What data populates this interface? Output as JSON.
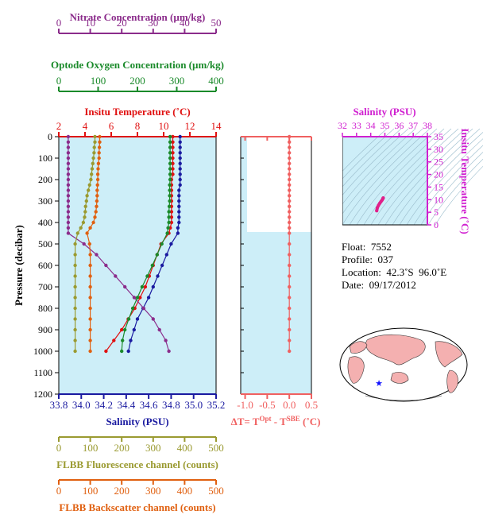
{
  "colors": {
    "nitrate": "#8b2c8b",
    "oxygen": "#1a8a2a",
    "temperature": "#e01010",
    "salinity": "#1a1aa0",
    "fluorescence": "#9a9a30",
    "backscatter": "#e06010",
    "dT": "#f06060",
    "ts_axis": "#d020d0",
    "plot_bg": "#cdeef8"
  },
  "axes": {
    "nitrate": {
      "label": "Nitrate Concentration (µm/kg)",
      "ticks": [
        "0",
        "10",
        "20",
        "30",
        "40",
        "50"
      ]
    },
    "oxygen": {
      "label": "Optode Oxygen Concentration (µm/kg)",
      "ticks": [
        "0",
        "100",
        "200",
        "300",
        "400"
      ]
    },
    "temperature": {
      "label": "Insitu Temperature (˚C)",
      "ticks": [
        "2",
        "4",
        "6",
        "8",
        "10",
        "12",
        "14"
      ]
    },
    "pressure": {
      "label": "Pressure (decibar)",
      "ticks": [
        "0",
        "100",
        "200",
        "300",
        "400",
        "500",
        "600",
        "700",
        "800",
        "900",
        "1000",
        "1100",
        "1200"
      ]
    },
    "salinity": {
      "label": "Salinity (PSU)",
      "ticks": [
        "33.8",
        "34.0",
        "34.2",
        "34.4",
        "34.6",
        "34.8",
        "35.0",
        "35.2"
      ]
    },
    "fluorescence": {
      "label": "FLBB Fluorescence channel (counts)",
      "ticks": [
        "0",
        "100",
        "200",
        "300",
        "400",
        "500"
      ]
    },
    "backscatter": {
      "label": "FLBB Backscatter channel (counts)",
      "ticks": [
        "0",
        "100",
        "200",
        "300",
        "400",
        "500"
      ]
    },
    "dT": {
      "label_prefix": "ΔT= T",
      "sup1": "Opt",
      "label_mid": " - T",
      "sup2": "SBE",
      "label_suffix": " (˚C)",
      "ticks": [
        "-1.0",
        "-0.5",
        "0.0",
        "0.5"
      ]
    },
    "ts_salinity": {
      "label": "Salinity (PSU)",
      "ticks": [
        "32",
        "33",
        "34",
        "35",
        "36",
        "37",
        "38"
      ]
    },
    "ts_temperature": {
      "label": "Insitu Temperature (˚C)",
      "ticks": [
        "0",
        "5",
        "10",
        "15",
        "20",
        "25",
        "30",
        "35"
      ]
    }
  },
  "info": {
    "float": "Float:  7552",
    "profile": "Profile:  037",
    "location": "Location:  42.3˚S  96.0˚E",
    "date": "Date:  09/17/2012"
  },
  "chart_data": [
    {
      "type": "line",
      "title": "",
      "ylabel": "Pressure (decibar)",
      "ylim": [
        1200,
        0
      ],
      "series": [
        {
          "name": "Insitu Temperature (˚C)",
          "xlim": [
            2,
            14
          ],
          "pressure": [
            0,
            25,
            50,
            75,
            100,
            125,
            150,
            175,
            200,
            225,
            250,
            275,
            300,
            325,
            350,
            375,
            400,
            425,
            450,
            500,
            550,
            600,
            650,
            700,
            750,
            800,
            850,
            900,
            950,
            1000
          ],
          "values": [
            10.7,
            10.7,
            10.7,
            10.7,
            10.7,
            10.7,
            10.7,
            10.7,
            10.6,
            10.6,
            10.6,
            10.6,
            10.6,
            10.6,
            10.6,
            10.6,
            10.6,
            10.5,
            10.4,
            9.8,
            9.5,
            9.2,
            8.9,
            8.6,
            8.2,
            7.8,
            7.3,
            6.8,
            6.2,
            5.6
          ]
        },
        {
          "name": "Salinity (PSU)",
          "xlim": [
            33.8,
            35.2
          ],
          "pressure": [
            0,
            25,
            50,
            75,
            100,
            125,
            150,
            175,
            200,
            225,
            250,
            275,
            300,
            325,
            350,
            375,
            400,
            425,
            450,
            500,
            550,
            600,
            650,
            700,
            750,
            800,
            850,
            900,
            950,
            1000
          ],
          "values": [
            34.88,
            34.88,
            34.88,
            34.88,
            34.88,
            34.88,
            34.88,
            34.88,
            34.88,
            34.88,
            34.87,
            34.87,
            34.87,
            34.87,
            34.87,
            34.87,
            34.87,
            34.86,
            34.86,
            34.8,
            34.76,
            34.72,
            34.68,
            34.64,
            34.6,
            34.55,
            34.5,
            34.47,
            34.44,
            34.42
          ]
        },
        {
          "name": "Nitrate Concentration (µm/kg)",
          "xlim": [
            0,
            50
          ],
          "pressure": [
            0,
            25,
            50,
            75,
            100,
            125,
            150,
            175,
            200,
            225,
            250,
            275,
            300,
            325,
            350,
            375,
            400,
            425,
            450,
            500,
            550,
            600,
            650,
            700,
            750,
            800,
            850,
            900,
            950,
            1000
          ],
          "values": [
            3,
            3,
            3,
            3,
            3,
            3,
            3,
            3,
            3,
            3,
            3,
            3,
            3,
            3,
            3,
            3,
            3,
            3,
            3,
            8,
            12,
            15,
            18,
            21,
            24,
            27,
            30,
            32,
            34,
            35
          ]
        },
        {
          "name": "Optode Oxygen Concentration (µm/kg)",
          "xlim": [
            0,
            400
          ],
          "pressure": [
            0,
            25,
            50,
            75,
            100,
            125,
            150,
            175,
            200,
            225,
            250,
            275,
            300,
            325,
            350,
            375,
            400,
            425,
            450,
            500,
            550,
            600,
            650,
            700,
            750,
            800,
            850,
            900,
            950,
            1000
          ],
          "values": [
            283,
            283,
            283,
            283,
            283,
            283,
            283,
            283,
            283,
            282,
            282,
            282,
            282,
            281,
            280,
            280,
            280,
            278,
            276,
            262,
            250,
            238,
            225,
            212,
            200,
            188,
            178,
            168,
            162,
            160
          ]
        },
        {
          "name": "FLBB Fluorescence channel (counts)",
          "xlim": [
            0,
            500
          ],
          "pressure": [
            0,
            25,
            50,
            75,
            100,
            125,
            150,
            175,
            200,
            225,
            250,
            275,
            300,
            325,
            350,
            375,
            400,
            425,
            450,
            500,
            550,
            600,
            650,
            700,
            750,
            800,
            850,
            900,
            950,
            1000
          ],
          "values": [
            115,
            115,
            113,
            112,
            110,
            108,
            106,
            104,
            102,
            98,
            94,
            90,
            88,
            85,
            84,
            82,
            78,
            70,
            60,
            52,
            52,
            52,
            52,
            52,
            52,
            52,
            52,
            52,
            52,
            52
          ]
        },
        {
          "name": "FLBB Backscatter channel (counts)",
          "xlim": [
            0,
            500
          ],
          "pressure": [
            0,
            25,
            50,
            75,
            100,
            125,
            150,
            175,
            200,
            225,
            250,
            275,
            300,
            325,
            350,
            375,
            400,
            425,
            450,
            500,
            550,
            600,
            650,
            700,
            750,
            800,
            850,
            900,
            950,
            1000
          ],
          "values": [
            130,
            130,
            129,
            128,
            128,
            126,
            125,
            124,
            124,
            123,
            122,
            122,
            121,
            120,
            118,
            115,
            110,
            100,
            90,
            98,
            100,
            100,
            100,
            100,
            100,
            100,
            100,
            100,
            100,
            100
          ]
        },
        {
          "name": "ΔT",
          "xlim": [
            -1.1,
            0.5
          ],
          "pressure": [
            0,
            25,
            50,
            75,
            100,
            125,
            150,
            175,
            200,
            225,
            250,
            275,
            300,
            325,
            350,
            375,
            400,
            425,
            450,
            500,
            550,
            600,
            650,
            700,
            750,
            800,
            850,
            900,
            950,
            1000
          ],
          "values": [
            0,
            0,
            0,
            0,
            0,
            0,
            0,
            0,
            0,
            0,
            0,
            0,
            0,
            0,
            0,
            0,
            0,
            0,
            0,
            0,
            0,
            0,
            0,
            0,
            0,
            0,
            0,
            0,
            0,
            0
          ]
        }
      ]
    },
    {
      "type": "scatter",
      "xlabel": "Salinity (PSU)",
      "ylabel": "Insitu Temperature (˚C)",
      "xlim": [
        32,
        38
      ],
      "ylim": [
        0,
        35
      ],
      "x": [
        34.42,
        34.47,
        34.55,
        34.64,
        34.72,
        34.8,
        34.86,
        34.87,
        34.88
      ],
      "y": [
        5.6,
        6.8,
        7.8,
        8.6,
        9.2,
        9.8,
        10.4,
        10.6,
        10.7
      ]
    }
  ]
}
